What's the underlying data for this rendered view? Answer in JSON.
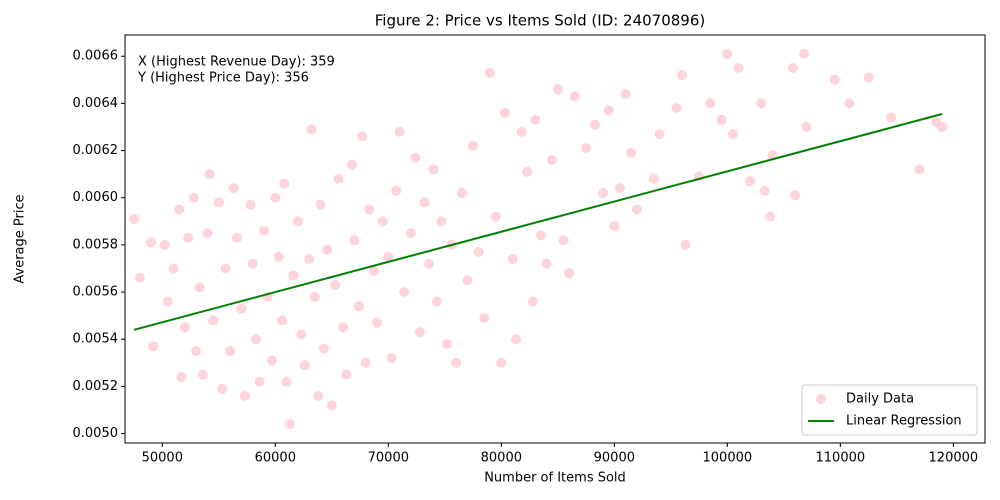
{
  "chart_data": {
    "type": "scatter",
    "title": "Figure 2: Price vs Items Sold (ID: 24070896)",
    "x_label": "Number of Items Sold",
    "y_label": "Average Price",
    "annotations": [
      "X (Highest Revenue Day): 359",
      "Y (Highest Price Day): 356"
    ],
    "legend": "lower right",
    "xlim": [
      46700,
      122800
    ],
    "ylim": [
      0.00496,
      0.00669
    ],
    "xticks": [
      50000,
      60000,
      70000,
      80000,
      90000,
      100000,
      110000,
      120000
    ],
    "yticks": [
      {
        "value": 0.005,
        "label": "0.0050"
      },
      0.0052,
      0.0054,
      0.0056,
      0.0058,
      {
        "value": 0.006,
        "label": "0.0060"
      },
      0.0062,
      0.0064,
      0.0066
    ],
    "series": [
      {
        "name": "Daily Data",
        "type": "scatter",
        "color": "#ffc0cb",
        "x": [
          47500,
          48000,
          49000,
          49200,
          50200,
          50500,
          51000,
          51500,
          51700,
          52000,
          52300,
          52800,
          53000,
          53300,
          53600,
          54000,
          54200,
          54500,
          55000,
          55300,
          55600,
          56000,
          56300,
          56600,
          57000,
          57300,
          57800,
          58000,
          58300,
          58600,
          59000,
          59300,
          59700,
          60000,
          60300,
          60600,
          60800,
          61000,
          61300,
          61600,
          62000,
          62300,
          62600,
          63000,
          63200,
          63500,
          63800,
          64000,
          64300,
          64600,
          65000,
          65300,
          65600,
          66000,
          66300,
          66800,
          67000,
          67400,
          67700,
          68000,
          68300,
          68700,
          69000,
          69500,
          70000,
          70300,
          70700,
          71000,
          71400,
          72000,
          72400,
          72800,
          73200,
          73600,
          74000,
          74300,
          74700,
          75200,
          75600,
          76000,
          76500,
          77000,
          77500,
          78000,
          78500,
          79000,
          79500,
          80000,
          80300,
          81000,
          81300,
          81800,
          82300,
          82800,
          83000,
          83500,
          84000,
          84500,
          85000,
          85500,
          86000,
          86500,
          87500,
          88300,
          89000,
          89500,
          90000,
          90500,
          91000,
          91500,
          92000,
          93500,
          94000,
          95500,
          96000,
          96300,
          97500,
          98500,
          99500,
          100000,
          100500,
          101000,
          102000,
          103000,
          103300,
          103800,
          104000,
          105800,
          106000,
          106800,
          107000,
          109500,
          110800,
          112500,
          114500,
          117000,
          118500,
          119000
        ],
        "values": [
          0.00591,
          0.00566,
          0.00581,
          0.00537,
          0.0058,
          0.00556,
          0.0057,
          0.00595,
          0.00524,
          0.00545,
          0.00583,
          0.006,
          0.00535,
          0.00562,
          0.00525,
          0.00585,
          0.0061,
          0.00548,
          0.00598,
          0.00519,
          0.0057,
          0.00535,
          0.00604,
          0.00583,
          0.00553,
          0.00516,
          0.00597,
          0.00572,
          0.0054,
          0.00522,
          0.00586,
          0.00558,
          0.00531,
          0.006,
          0.00575,
          0.00548,
          0.00606,
          0.00522,
          0.00504,
          0.00567,
          0.0059,
          0.00542,
          0.00529,
          0.00574,
          0.00629,
          0.00558,
          0.00516,
          0.00597,
          0.00536,
          0.00578,
          0.00512,
          0.00563,
          0.00608,
          0.00545,
          0.00525,
          0.00614,
          0.00582,
          0.00554,
          0.00626,
          0.0053,
          0.00595,
          0.00569,
          0.00547,
          0.0059,
          0.00575,
          0.00532,
          0.00603,
          0.00628,
          0.0056,
          0.00585,
          0.00617,
          0.00543,
          0.00598,
          0.00572,
          0.00612,
          0.00556,
          0.0059,
          0.00538,
          0.0058,
          0.0053,
          0.00602,
          0.00565,
          0.00622,
          0.00577,
          0.00549,
          0.00653,
          0.00592,
          0.0053,
          0.00636,
          0.00574,
          0.0054,
          0.00628,
          0.00611,
          0.00556,
          0.00633,
          0.00584,
          0.00572,
          0.00616,
          0.00646,
          0.00582,
          0.00568,
          0.00643,
          0.00621,
          0.00631,
          0.00602,
          0.00637,
          0.00588,
          0.00604,
          0.00644,
          0.00619,
          0.00595,
          0.00608,
          0.00627,
          0.00638,
          0.00652,
          0.0058,
          0.00609,
          0.0064,
          0.00633,
          0.00661,
          0.00627,
          0.00655,
          0.00607,
          0.0064,
          0.00603,
          0.00592,
          0.00618,
          0.00655,
          0.00601,
          0.00661,
          0.0063,
          0.0065,
          0.0064,
          0.00651,
          0.00634,
          0.00612,
          0.00632,
          0.0063
        ]
      },
      {
        "name": "Linear Regression",
        "type": "line",
        "color": "#008000",
        "x": [
          47500,
          119000
        ],
        "values": [
          0.00544,
          0.006355
        ]
      }
    ]
  }
}
